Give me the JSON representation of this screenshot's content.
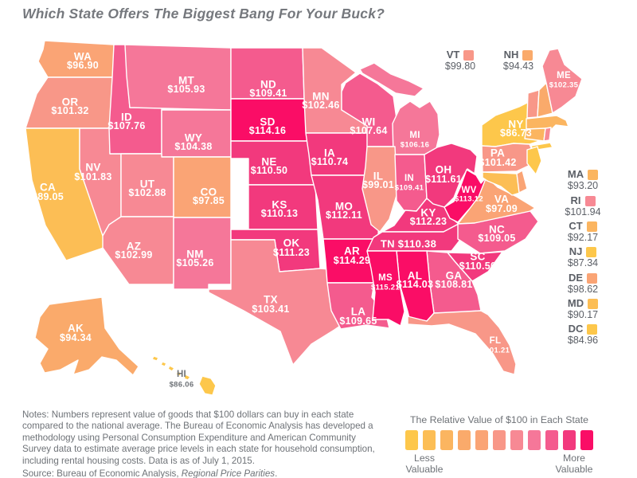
{
  "title": "Which State Offers The Biggest Bang For Your Buck?",
  "theme": {
    "title_color": "#75787D",
    "body_text_color": "#6E7277",
    "callout_text_color": "#5B5F66",
    "map_border_color": "#FFFFFF",
    "map_label_color": "#FFFFFF",
    "hawaii_label_color": "#6E7277"
  },
  "chart_data": {
    "type": "heatmap",
    "subtype": "us-choropleth",
    "title": "Which State Offers The Biggest Bang For Your Buck?",
    "value_description": "Value of goods that $100 can buy in each state compared to the national average (USD)",
    "as_of": "July 1, 2015",
    "source": "Bureau of Economic Analysis, Regional Price Parities",
    "categories": [
      "AL",
      "AK",
      "AZ",
      "AR",
      "CA",
      "CO",
      "CT",
      "DC",
      "DE",
      "FL",
      "GA",
      "HI",
      "ID",
      "IL",
      "IN",
      "IA",
      "KS",
      "KY",
      "LA",
      "ME",
      "MD",
      "MA",
      "MI",
      "MN",
      "MS",
      "MO",
      "MT",
      "NE",
      "NV",
      "NH",
      "NJ",
      "NM",
      "NY",
      "NC",
      "ND",
      "OH",
      "OK",
      "OR",
      "PA",
      "RI",
      "SC",
      "SD",
      "TN",
      "TX",
      "UT",
      "VT",
      "VA",
      "WA",
      "WV",
      "WI",
      "WY"
    ],
    "values": [
      114.03,
      94.34,
      102.99,
      114.29,
      89.05,
      97.85,
      92.17,
      84.96,
      98.62,
      101.21,
      108.81,
      86.06,
      107.76,
      99.01,
      109.41,
      110.74,
      110.13,
      112.23,
      109.65,
      102.35,
      90.17,
      93.2,
      106.16,
      102.46,
      115.21,
      112.11,
      105.93,
      110.5,
      101.83,
      94.43,
      87.34,
      105.26,
      86.73,
      109.05,
      109.41,
      111.61,
      111.23,
      101.32,
      101.42,
      101.94,
      110.5,
      114.16,
      110.38,
      103.41,
      102.88,
      99.8,
      97.09,
      96.9,
      113.12,
      107.64,
      104.38
    ],
    "value_range": [
      84.96,
      115.21
    ],
    "legend": {
      "title": "The Relative Value of $100 in Each State",
      "min_label": "Less Valuable",
      "max_label": "More Valuable",
      "position": "bottom-right"
    },
    "color_scale": [
      "#FDC74B",
      "#FCBE55",
      "#FBB560",
      "#FAAA6B",
      "#FAA475",
      "#F89788",
      "#F78994",
      "#F57799",
      "#F45B8E",
      "#F2397D",
      "#FA0D66"
    ]
  },
  "state_callouts": [
    "VT",
    "NH",
    "MA",
    "RI",
    "CT",
    "NJ",
    "DE",
    "MD",
    "DC"
  ],
  "notes": {
    "body": "Notes: Numbers represent value of goods that $100 dollars can buy in each state compared to the national average. The Bureau of Economic Analysis has developed a methodology using Personal Consumption Expenditure and American Community Survey data to estimate average price levels in each state for household consumption, including rental housing costs. Data is as of July 1, 2015.",
    "source_prefix": "Source: Bureau of Economic Analysis, ",
    "source_italic": "Regional Price Parities",
    "source_suffix": "."
  },
  "color_legend": {
    "title": "The Relative Value of $100 in Each State",
    "less_label": "Less Valuable",
    "more_label": "More Valuable"
  }
}
